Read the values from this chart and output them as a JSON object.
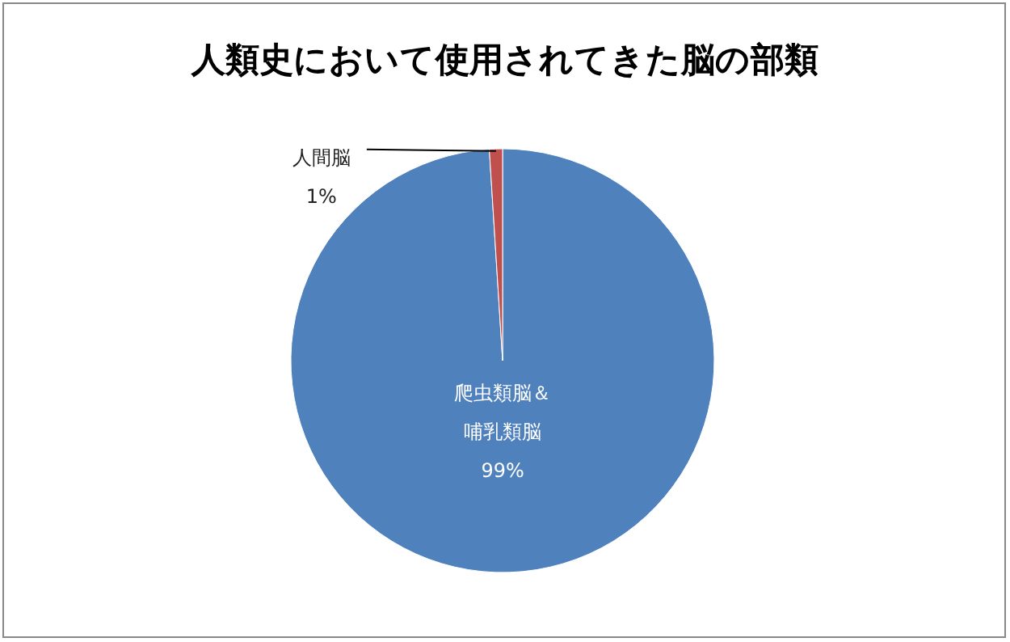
{
  "chart_data": {
    "type": "pie",
    "title": "人類史において使用されてきた脳の部類",
    "categories": [
      "爬虫類脳＆哺乳類脳",
      "人間脳"
    ],
    "values": [
      99,
      1
    ],
    "colors": [
      "#4f81bd",
      "#c0504d"
    ],
    "value_labels": [
      "99%",
      "1%"
    ]
  }
}
